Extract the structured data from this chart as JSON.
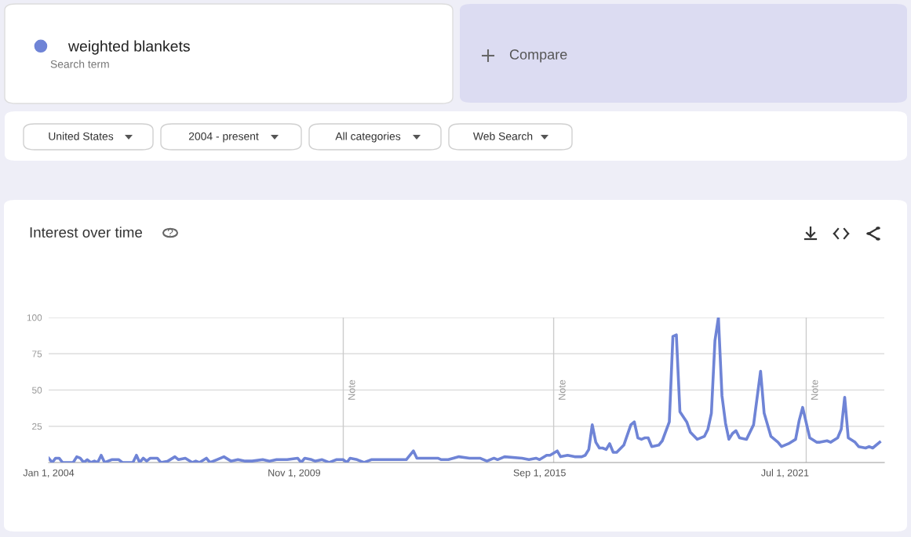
{
  "chart_data": {
    "type": "line",
    "title": "Interest over time",
    "annotations": [
      "Search term",
      "Compare",
      "United States",
      "2004 - present",
      "All categories",
      "Web Search",
      "?"
    ],
    "series": [
      {
        "name": "weighted blankets",
        "color": "#6f84d6",
        "x": [
          "2004-01",
          "2004-02",
          "2004-03",
          "2004-04",
          "2004-05",
          "2004-08",
          "2004-09",
          "2004-10",
          "2004-11",
          "2004-12",
          "2005-01",
          "2005-02",
          "2005-03",
          "2005-04",
          "2005-05",
          "2005-07",
          "2005-09",
          "2005-10",
          "2006-01",
          "2006-02",
          "2006-03",
          "2006-04",
          "2006-05",
          "2006-06",
          "2006-08",
          "2006-09",
          "2006-11",
          "2007-01",
          "2007-02",
          "2007-04",
          "2007-06",
          "2007-07",
          "2007-08",
          "2007-10",
          "2007-11",
          "2008-01",
          "2008-03",
          "2008-05",
          "2008-07",
          "2008-09",
          "2008-11",
          "2009-02",
          "2009-04",
          "2009-06",
          "2009-09",
          "2009-12",
          "2010-01",
          "2010-02",
          "2010-04",
          "2010-05",
          "2010-07",
          "2010-09",
          "2010-11",
          "2011-01",
          "2011-02",
          "2011-03",
          "2011-05",
          "2011-07",
          "2011-09",
          "2012-03",
          "2012-07",
          "2012-09",
          "2012-10",
          "2013-04",
          "2013-05",
          "2013-07",
          "2013-10",
          "2014-01",
          "2014-04",
          "2014-06",
          "2014-08",
          "2014-09",
          "2014-11",
          "2015-04",
          "2015-06",
          "2015-08",
          "2015-09",
          "2015-11",
          "2015-12",
          "2016-02",
          "2016-03",
          "2016-05",
          "2016-07",
          "2016-09",
          "2016-10",
          "2016-11",
          "2016-12",
          "2017-01",
          "2017-02",
          "2017-03",
          "2017-04",
          "2017-05",
          "2017-06",
          "2017-07",
          "2017-09",
          "2017-11",
          "2017-12",
          "2018-01",
          "2018-02",
          "2018-03",
          "2018-04",
          "2018-05",
          "2018-07",
          "2018-08",
          "2018-10",
          "2018-11",
          "2018-12",
          "2019-01",
          "2019-03",
          "2019-04",
          "2019-06",
          "2019-08",
          "2019-09",
          "2019-10",
          "2019-11",
          "2019-12",
          "2020-01",
          "2020-02",
          "2020-03",
          "2020-04",
          "2020-05",
          "2020-06",
          "2020-08",
          "2020-10",
          "2020-12",
          "2021-01",
          "2021-03",
          "2021-05",
          "2021-06",
          "2021-08",
          "2021-10",
          "2021-11",
          "2021-12",
          "2022-02",
          "2022-04",
          "2022-05",
          "2022-07",
          "2022-08",
          "2022-10",
          "2022-11",
          "2022-12",
          "2023-01",
          "2023-03",
          "2023-04",
          "2023-06",
          "2023-07",
          "2023-08",
          "2023-10"
        ],
        "values": [
          3,
          0,
          3,
          3,
          0,
          0,
          4,
          3,
          0,
          2,
          0,
          1,
          0,
          5,
          0,
          2,
          2,
          0,
          0,
          5,
          0,
          3,
          1,
          3,
          3,
          0,
          1,
          4,
          2,
          3,
          0,
          1,
          0,
          3,
          0,
          2,
          4,
          1,
          2,
          1,
          1,
          2,
          1,
          2,
          2,
          3,
          0,
          3,
          2,
          1,
          2,
          0,
          2,
          2,
          0,
          3,
          2,
          0,
          2,
          2,
          2,
          8,
          3,
          3,
          2,
          2,
          4,
          3,
          3,
          1,
          3,
          2,
          4,
          3,
          2,
          3,
          2,
          5,
          5,
          8,
          4,
          5,
          4,
          4,
          5,
          9,
          26,
          14,
          10,
          10,
          9,
          13,
          7,
          7,
          12,
          26,
          28,
          17,
          16,
          17,
          17,
          11,
          12,
          15,
          28,
          87,
          88,
          35,
          28,
          21,
          16,
          18,
          23,
          34,
          84,
          100,
          46,
          27,
          16,
          20,
          22,
          17,
          16,
          26,
          63,
          34,
          18,
          14,
          11,
          13,
          16,
          29,
          38,
          17,
          14,
          14,
          15,
          14,
          17,
          23,
          45,
          17,
          14,
          11,
          10,
          11,
          10,
          14
        ]
      }
    ],
    "xlim": [
      "2004-01-01",
      "2023-11-10"
    ],
    "xticks": [
      {
        "value": "2004-01-01",
        "label": "Jan 1, 2004"
      },
      {
        "value": "2009-11-01",
        "label": "Nov 1, 2009"
      },
      {
        "value": "2015-09-01",
        "label": "Sep 1, 2015"
      },
      {
        "value": "2021-07-01",
        "label": "Jul 1, 2021"
      }
    ],
    "ylim": [
      0,
      100
    ],
    "yticks": [
      25,
      50,
      75,
      100
    ],
    "grid": "y",
    "legend": "top left",
    "marker": "none",
    "line_style": "solid",
    "ref_lines": [
      {
        "axis": "x",
        "value": "2011-01-01",
        "label": "Note",
        "color": "#cccccc"
      },
      {
        "axis": "x",
        "value": "2016-01-01",
        "label": "Note",
        "color": "#cccccc"
      },
      {
        "axis": "x",
        "value": "2022-01-01",
        "label": "Note",
        "color": "#cccccc"
      }
    ]
  }
}
